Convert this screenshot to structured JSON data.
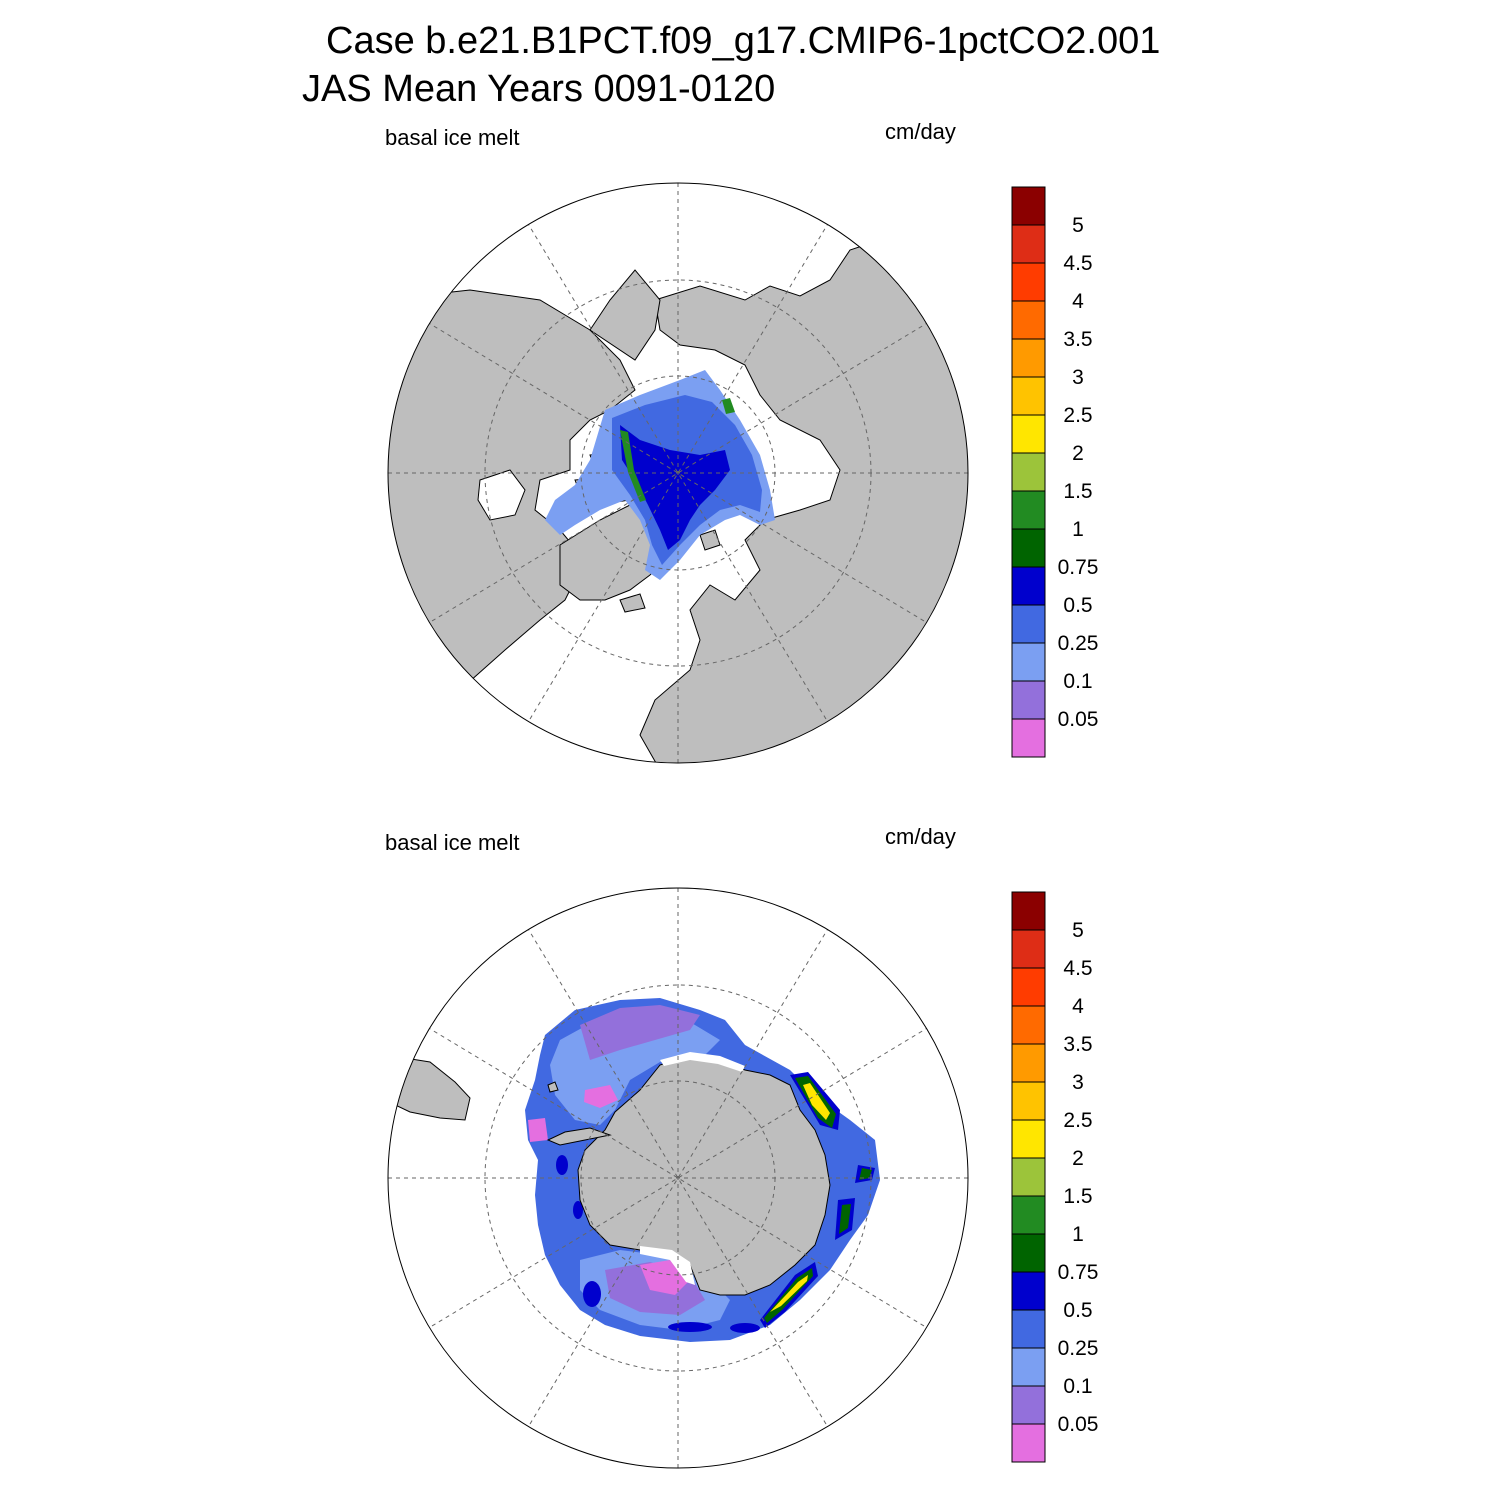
{
  "figure": {
    "title_line1": "Case b.e21.B1PCT.f09_g17.CMIP6-1pctCO2.001",
    "title_line2": "JAS Mean   Years 0091-0120"
  },
  "panels": [
    {
      "id": "north",
      "hemisphere": "Northern Hemisphere",
      "left_label": "basal ice melt",
      "right_label": "cm/day"
    },
    {
      "id": "south",
      "hemisphere": "Southern Hemisphere",
      "left_label": "basal ice melt",
      "right_label": "cm/day"
    }
  ],
  "colorbar": {
    "units": "cm/day",
    "levels": [
      "5",
      "4.5",
      "4",
      "3.5",
      "3",
      "2.5",
      "2",
      "1.5",
      "1",
      "0.75",
      "0.5",
      "0.25",
      "0.1",
      "0.05"
    ],
    "colors": [
      "#8b0000",
      "#de2d16",
      "#ff3c00",
      "#ff6a00",
      "#ff9a00",
      "#ffc300",
      "#ffe600",
      "#9cc43a",
      "#228b22",
      "#006400",
      "#0000cd",
      "#4169e1",
      "#7b9ff2",
      "#9370db",
      "#e46fe0"
    ]
  },
  "style": {
    "land": "#bebebe",
    "ocean": "#ffffff",
    "outline": "#000000"
  }
}
